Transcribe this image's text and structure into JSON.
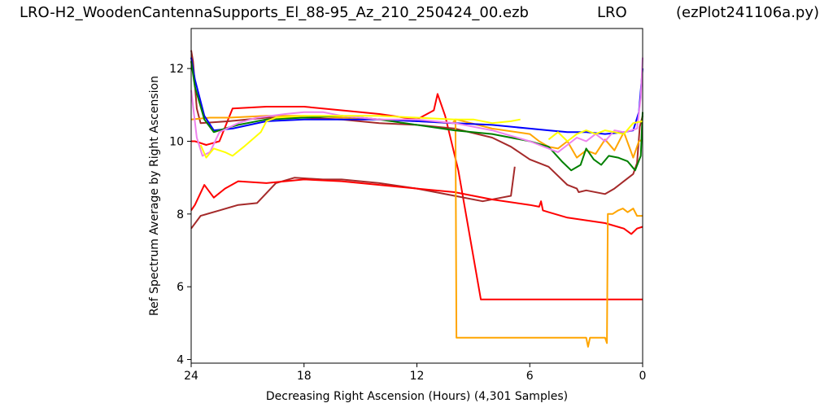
{
  "header": {
    "filename": "LRO-H2_WoodenCantennaSupports_El_88-95_Az_210_250424_00.ezb",
    "site": "LRO",
    "program": "(ezPlot241106a.py)"
  },
  "chart_data": {
    "type": "line",
    "title": "",
    "xlabel": "Decreasing Right Ascension (Hours) (4,301 Samples)",
    "ylabel": "Ref Spectrum Average by Right Ascension",
    "xlim": [
      24,
      0
    ],
    "ylim": [
      3.9,
      13.1
    ],
    "x_reversed": true,
    "x_ticks": [
      24,
      18,
      12,
      6,
      0
    ],
    "y_ticks": [
      4,
      6,
      8,
      10,
      12
    ],
    "grid": false,
    "series": [
      {
        "color": "#ff0000",
        "x": [
          24,
          23.8,
          23.5,
          23.2,
          22.5,
          21.8,
          20,
          18,
          16,
          14,
          12,
          11.1,
          10.9,
          10.5,
          9.8,
          8.6,
          8,
          6,
          4,
          2,
          1.2,
          0.5,
          0.3,
          0
        ],
        "y": [
          10.0,
          10.0,
          9.95,
          9.9,
          10.0,
          10.9,
          10.95,
          10.95,
          10.85,
          10.75,
          10.6,
          10.85,
          11.3,
          10.7,
          9.2,
          5.65,
          5.65,
          5.65,
          5.65,
          5.65,
          5.65,
          5.65,
          5.65,
          5.65
        ]
      },
      {
        "color": "#a52a2a",
        "x": [
          24,
          23.9,
          23.7,
          23.5,
          22,
          20,
          18,
          16,
          14,
          12,
          10,
          8,
          7,
          6,
          5,
          4,
          3.5,
          3.4,
          3,
          2,
          1.5,
          1,
          0.5,
          0.3,
          0.15,
          0
        ],
        "y": [
          12.5,
          12.2,
          10.9,
          10.5,
          10.55,
          10.65,
          10.65,
          10.6,
          10.5,
          10.45,
          10.35,
          10.1,
          9.85,
          9.5,
          9.3,
          8.8,
          8.7,
          8.6,
          8.65,
          8.55,
          8.7,
          8.9,
          9.1,
          9.4,
          10.4,
          10.7
        ]
      },
      {
        "color": "#a52a2a",
        "x": [
          24,
          23.5,
          22.5,
          21.5,
          20.5,
          19.5,
          18.5,
          17,
          16,
          14,
          12,
          10,
          8.5,
          7.5,
          7,
          6.8
        ],
        "y": [
          7.6,
          7.95,
          8.1,
          8.25,
          8.3,
          8.85,
          9.0,
          8.95,
          8.95,
          8.85,
          8.7,
          8.5,
          8.35,
          8.45,
          8.5,
          9.3
        ]
      },
      {
        "color": "#ff0000",
        "x": [
          24,
          23.8,
          23.3,
          22.8,
          22.2,
          21.5,
          20,
          18,
          16,
          14,
          12,
          10,
          8,
          6,
          5.5,
          5.4,
          5.3,
          5,
          4,
          2,
          1,
          0.6,
          0.3,
          0
        ],
        "y": [
          8.1,
          8.25,
          8.8,
          8.45,
          8.7,
          8.9,
          8.85,
          8.95,
          8.9,
          8.8,
          8.7,
          8.6,
          8.4,
          8.25,
          8.2,
          8.35,
          8.1,
          8.05,
          7.9,
          7.75,
          7.6,
          7.45,
          7.6,
          7.65
        ]
      },
      {
        "color": "#ffa500",
        "x": [
          24,
          23,
          22,
          20,
          18,
          16,
          14,
          12,
          10.1,
          9.95,
          9.9,
          6,
          3,
          2.9,
          2.8,
          2.7,
          2,
          1.9,
          1.85,
          1.6,
          1.3,
          1.05,
          0.8,
          0.5,
          0.3,
          0
        ],
        "y": [
          10.6,
          10.65,
          10.65,
          10.7,
          10.7,
          10.65,
          10.6,
          10.55,
          10.5,
          10.6,
          4.6,
          4.6,
          4.6,
          4.35,
          4.6,
          4.6,
          4.6,
          4.45,
          8.0,
          8.0,
          8.1,
          8.15,
          8.05,
          8.15,
          7.95,
          7.95
        ]
      },
      {
        "color": "#ffa500",
        "x": [
          9.9,
          8,
          6,
          5.5,
          5,
          4.5,
          4,
          3.5,
          3,
          2.5,
          2,
          1.5,
          1,
          0.5,
          0.2,
          0
        ],
        "y": [
          10.6,
          10.35,
          10.2,
          10.0,
          9.85,
          9.8,
          10.0,
          9.55,
          9.75,
          9.65,
          10.05,
          9.75,
          10.25,
          9.55,
          10.0,
          10.05
        ]
      },
      {
        "color": "#0000ff",
        "x": [
          24,
          23.8,
          23.3,
          22.8,
          21.8,
          20,
          18,
          16,
          14,
          12,
          10,
          8,
          6,
          5,
          4,
          3,
          2,
          1,
          0.5,
          0.2,
          0
        ],
        "y": [
          12.3,
          11.7,
          10.7,
          10.3,
          10.35,
          10.55,
          10.6,
          10.6,
          10.6,
          10.55,
          10.5,
          10.45,
          10.35,
          10.3,
          10.25,
          10.25,
          10.2,
          10.25,
          10.3,
          10.8,
          12.0
        ]
      },
      {
        "color": "#008000",
        "x": [
          24,
          23.8,
          23.3,
          22.8,
          22.2,
          21.5,
          20,
          18,
          16,
          14,
          12,
          10,
          8,
          6,
          5,
          4.3,
          3.8,
          3.3,
          3,
          2.6,
          2.2,
          1.8,
          1.3,
          0.8,
          0.4,
          0.1,
          0
        ],
        "y": [
          12.2,
          11.5,
          10.6,
          10.25,
          10.35,
          10.45,
          10.6,
          10.65,
          10.7,
          10.6,
          10.45,
          10.3,
          10.2,
          10.0,
          9.85,
          9.45,
          9.2,
          9.35,
          9.8,
          9.5,
          9.35,
          9.6,
          9.55,
          9.45,
          9.2,
          9.6,
          10.8
        ]
      },
      {
        "color": "#ee82ee",
        "x": [
          24,
          23.7,
          23.4,
          23.0,
          22.5,
          21.5,
          20.5,
          19,
          18,
          17,
          16,
          14,
          12,
          10,
          8,
          6,
          4.5,
          4,
          3.5,
          3,
          2.5,
          2,
          1.5,
          1,
          0.6,
          0.3,
          0.1,
          0
        ],
        "y": [
          11.4,
          10.1,
          9.6,
          9.7,
          10.25,
          10.5,
          10.65,
          10.75,
          10.8,
          10.8,
          10.7,
          10.6,
          10.6,
          10.5,
          10.3,
          10.0,
          9.7,
          9.9,
          10.1,
          10.0,
          10.2,
          10.0,
          10.3,
          10.25,
          10.3,
          10.35,
          11.2,
          12.3
        ]
      },
      {
        "color": "#ffff00",
        "x": [
          23.5,
          23.2,
          22.8,
          22.2,
          21.8,
          21.2,
          20.3,
          20,
          19.5,
          18,
          16,
          14,
          12,
          10,
          9,
          8,
          7,
          6.5
        ],
        "y": [
          9.9,
          9.55,
          9.8,
          9.7,
          9.6,
          9.85,
          10.25,
          10.55,
          10.65,
          10.7,
          10.7,
          10.7,
          10.65,
          10.6,
          10.6,
          10.5,
          10.55,
          10.6
        ]
      },
      {
        "color": "#ffff00",
        "x": [
          5,
          4.5,
          4,
          3.5,
          3,
          2.5,
          2,
          1.5,
          1,
          0.5,
          0
        ],
        "y": [
          10.05,
          10.25,
          10.0,
          10.2,
          10.3,
          10.2,
          10.3,
          10.25,
          10.2,
          10.5,
          10.55
        ]
      }
    ]
  }
}
